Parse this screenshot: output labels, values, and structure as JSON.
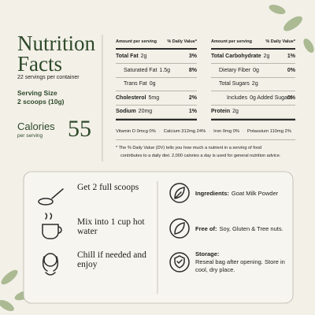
{
  "header": {
    "title_line1": "Nutrition",
    "title_line2": "Facts",
    "servings": "22 servings per container",
    "serving_size_label": "Serving Size",
    "serving_size": "2 scoops (10g)",
    "calories_label": "Calories",
    "calories_sub": "per serving",
    "calories": 55
  },
  "table": {
    "amount_header": "Amount per serving",
    "dv_header": "% Daily Value*",
    "left": [
      {
        "label": "Total Fat",
        "amount": "2g",
        "dv": "3%"
      },
      {
        "label": "Saturated Fat",
        "amount": "1.5g",
        "dv": "8%"
      },
      {
        "label": "Trans Fat",
        "amount": "0g"
      },
      {
        "label": "Cholesterol",
        "amount": "5mg",
        "dv": "2%"
      },
      {
        "label": "Sodium",
        "amount": "20mg",
        "dv": "1%"
      }
    ],
    "right": [
      {
        "label": "Total Carbohydrate",
        "amount": "2g",
        "dv": "1%"
      },
      {
        "label": "Dietary Fiber",
        "amount": "0g",
        "dv": "0%"
      },
      {
        "label": "Total Sugars",
        "amount": "2g"
      },
      {
        "label": "Includes",
        "amount": "0g Added Sugars",
        "dv": "0%"
      },
      {
        "label": "Protein",
        "amount": "2g"
      }
    ],
    "vitamins": [
      "Vitamin D 0mcg 0%",
      "Calcium 312mg 24%",
      "Iron 0mg 0%",
      "Potassium 110mg 2%"
    ],
    "footnote": [
      "* The % Daily Value (DV) tells you how much a nutrient in a serving of food",
      "contributes to a daily diet. 2,000 calories a day is used for general nutrition advice."
    ]
  },
  "steps": [
    "Get 2 full scoops",
    "Mix into 1 cup hot water",
    "Chill if needed and enjoy"
  ],
  "info": [
    {
      "label": "Ingredients:",
      "text": "Goat Milk Powder"
    },
    {
      "label": "Free of:",
      "text": "Soy, Gluten & Tree nuts."
    },
    {
      "label": "Storage:",
      "text": "Reseal bag after opening. Store in cool, dry place."
    }
  ]
}
